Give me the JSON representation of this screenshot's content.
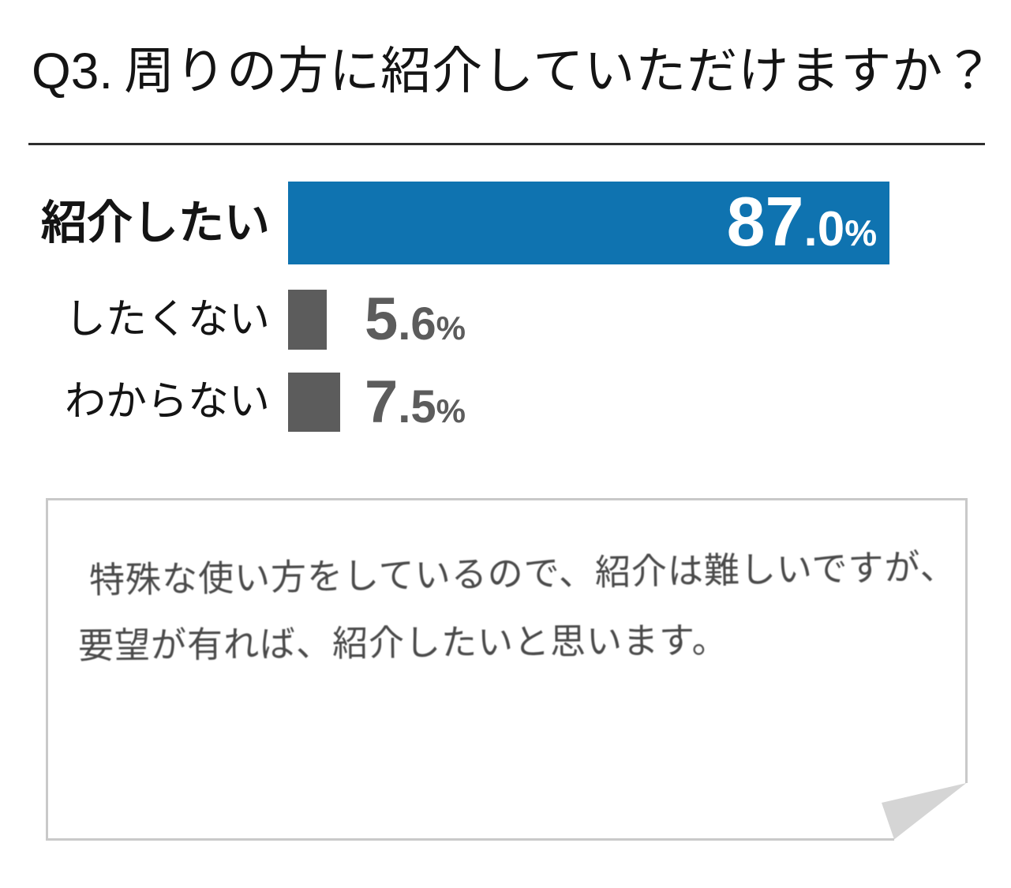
{
  "title": {
    "prefix": "Q3.",
    "question": "周りの方に紹介していただけますか？"
  },
  "chart_data": {
    "type": "bar",
    "orientation": "horizontal",
    "title": "Q3. 周りの方に紹介していただけますか？",
    "categories": [
      "紹介したい",
      "したくない",
      "わからない"
    ],
    "values": [
      87.0,
      5.6,
      7.5
    ],
    "value_labels": [
      "87.0%",
      "5.6%",
      "7.5%"
    ],
    "unit": "%",
    "xlim": [
      0,
      100
    ],
    "grid": false,
    "legend": false,
    "bar_colors": [
      "#0f73b0",
      "#5c5c5c",
      "#5c5c5c"
    ],
    "value_label_colors": [
      "#ffffff",
      "#5c5c5c",
      "#5c5c5c"
    ]
  },
  "rows": [
    {
      "label": "紹介したい",
      "int": "87",
      "dec": ".0",
      "pct": "%"
    },
    {
      "label": "したくない",
      "int": "5",
      "dec": ".6",
      "pct": "%"
    },
    {
      "label": "わからない",
      "int": "7",
      "dec": ".5",
      "pct": "%"
    }
  ],
  "note": {
    "line1": "特殊な使い方をしているので、紹介は難しいですが、",
    "line2": "要望が有れば、紹介したいと思います。",
    "border_color": "#c9c9c9",
    "fold_color": "#d5d5d5"
  }
}
